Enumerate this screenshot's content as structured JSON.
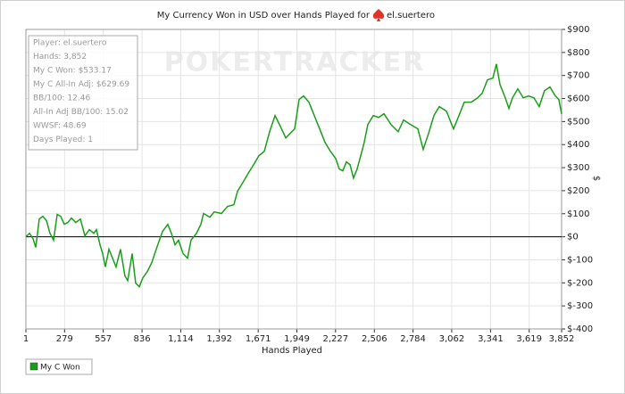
{
  "chart_data": {
    "type": "line",
    "title": "My Currency Won in USD over Hands Played for",
    "player": "el.suertero",
    "watermark": "POKERTRACKER",
    "x_label": "Hands Played",
    "y_label": "$",
    "info_box": [
      "Player: el.suertero",
      "Hands: 3,852",
      "My C Won: $533.17",
      "My C All-In Adj: $629.69",
      "BB/100: 12.46",
      "All-In Adj BB/100: 15.02",
      "WWSF: 48.69",
      "Days Played: 1"
    ],
    "xlim": [
      1,
      3852
    ],
    "ylim": [
      -400,
      900
    ],
    "grid": true,
    "zero_line": true,
    "xticks": [
      1,
      279,
      557,
      836,
      {
        "value": 1114,
        "label": "1,114"
      },
      {
        "value": 1392,
        "label": "1,392"
      },
      {
        "value": 1671,
        "label": "1,671"
      },
      {
        "value": 1949,
        "label": "1,949"
      },
      {
        "value": 2227,
        "label": "2,227"
      },
      {
        "value": 2506,
        "label": "2,506"
      },
      {
        "value": 2784,
        "label": "2,784"
      },
      {
        "value": 3062,
        "label": "3,062"
      },
      {
        "value": 3341,
        "label": "3,341"
      },
      {
        "value": 3619,
        "label": "3,619"
      },
      {
        "value": 3852,
        "label": "3,852"
      }
    ],
    "yticks": [
      {
        "value": -400,
        "label": "$-400"
      },
      {
        "value": -300,
        "label": "$-300"
      },
      {
        "value": -200,
        "label": "$-200"
      },
      {
        "value": -100,
        "label": "$-100"
      },
      {
        "value": 0,
        "label": "$0"
      },
      {
        "value": 100,
        "label": "$100"
      },
      {
        "value": 200,
        "label": "$200"
      },
      {
        "value": 300,
        "label": "$300"
      },
      {
        "value": 400,
        "label": "$400"
      },
      {
        "value": 500,
        "label": "$500"
      },
      {
        "value": 600,
        "label": "$600"
      },
      {
        "value": 700,
        "label": "$700"
      },
      {
        "value": 800,
        "label": "$800"
      },
      {
        "value": 900,
        "label": "$900"
      }
    ],
    "x": [
      1,
      27,
      52,
      72,
      97,
      123,
      149,
      174,
      200,
      226,
      251,
      277,
      303,
      328,
      360,
      393,
      425,
      457,
      489,
      508,
      534,
      553,
      572,
      598,
      624,
      649,
      681,
      713,
      733,
      765,
      790,
      816,
      842,
      874,
      906,
      938,
      983,
      1021,
      1047,
      1073,
      1098,
      1131,
      1163,
      1188,
      1227,
      1259,
      1278,
      1323,
      1355,
      1407,
      1451,
      1496,
      1522,
      1561,
      1599,
      1638,
      1676,
      1715,
      1753,
      1792,
      1824,
      1869,
      1901,
      1933,
      1965,
      1997,
      2036,
      2074,
      2113,
      2151,
      2190,
      2228,
      2254,
      2279,
      2305,
      2331,
      2356,
      2382,
      2408,
      2433,
      2459,
      2498,
      2536,
      2575,
      2626,
      2677,
      2716,
      2767,
      2819,
      2857,
      2896,
      2934,
      2973,
      3024,
      3075,
      3114,
      3152,
      3203,
      3248,
      3281,
      3319,
      3358,
      3383,
      3409,
      3447,
      3473,
      3499,
      3537,
      3576,
      3614,
      3653,
      3691,
      3729,
      3768,
      3807,
      3832,
      3852
    ],
    "series": [
      {
        "name": "My C Won",
        "color": "#1a9e1a",
        "values": [
          0,
          15,
          -8,
          -46,
          77,
          89,
          70,
          15,
          -15,
          97,
          89,
          54,
          62,
          81,
          62,
          77,
          4,
          31,
          15,
          31,
          -35,
          -73,
          -131,
          -54,
          -93,
          -131,
          -54,
          -170,
          -190,
          -73,
          -201,
          -217,
          -178,
          -151,
          -112,
          -54,
          23,
          54,
          15,
          -35,
          -15,
          -73,
          -93,
          -15,
          15,
          54,
          101,
          85,
          108,
          101,
          132,
          139,
          197,
          236,
          275,
          313,
          352,
          371,
          456,
          526,
          487,
          429,
          449,
          468,
          596,
          611,
          584,
          526,
          468,
          410,
          371,
          340,
          294,
          286,
          325,
          313,
          255,
          294,
          352,
          410,
          487,
          526,
          518,
          534,
          487,
          456,
          507,
          487,
          468,
          379,
          449,
          526,
          565,
          545,
          468,
          526,
          584,
          584,
          603,
          623,
          681,
          689,
          750,
          661,
          603,
          557,
          603,
          642,
          603,
          611,
          603,
          565,
          634,
          650,
          611,
          596,
          533.17
        ]
      }
    ]
  }
}
